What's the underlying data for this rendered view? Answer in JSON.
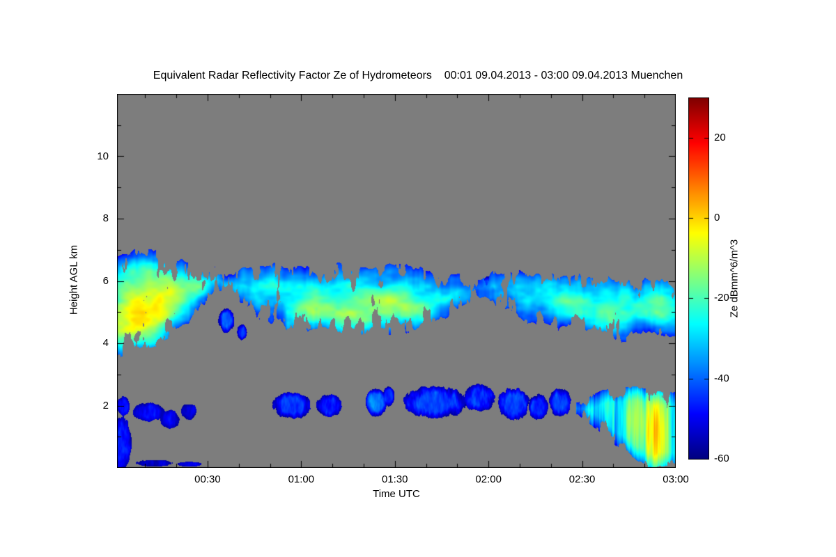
{
  "title": "Equivalent Radar Reflectivity Factor Ze of Hydrometeors    00:01 09.04.2013 - 03:00 09.04.2013 Muenchen",
  "site": "Muenchen",
  "time_start": "00:01 09.04.2013",
  "time_end": "03:00 09.04.2013",
  "plot": {
    "background_color": "#7d7d7d",
    "frame_color": "#000000"
  },
  "axes": {
    "x": {
      "label": "Time UTC",
      "start_minutes": 1,
      "end_minutes": 180,
      "minor_step_minutes": 10,
      "major_ticks": [
        {
          "minutes": 30,
          "label": "00:30"
        },
        {
          "minutes": 60,
          "label": "01:00"
        },
        {
          "minutes": 90,
          "label": "01:30"
        },
        {
          "minutes": 120,
          "label": "02:00"
        },
        {
          "minutes": 150,
          "label": "02:30"
        },
        {
          "minutes": 180,
          "label": "03:00"
        }
      ]
    },
    "y": {
      "label": "Height AGL km",
      "min_km": 0,
      "max_km": 12,
      "minor_step_km": 1,
      "major_ticks": [
        {
          "km": 2,
          "label": "2"
        },
        {
          "km": 4,
          "label": "4"
        },
        {
          "km": 6,
          "label": "6"
        },
        {
          "km": 8,
          "label": "8"
        },
        {
          "km": 10,
          "label": "10"
        }
      ]
    }
  },
  "colorbar": {
    "label": "Ze dBmm^6/m^3",
    "min": -60,
    "max": 30,
    "colormap": "jet",
    "ticks": [
      {
        "value": 20,
        "label": "20"
      },
      {
        "value": 0,
        "label": "0"
      },
      {
        "value": -20,
        "label": "-20"
      },
      {
        "value": -40,
        "label": "-40"
      },
      {
        "value": -60,
        "label": "-60"
      }
    ]
  },
  "chart_data": {
    "type": "heatmap",
    "title": "Equivalent Radar Reflectivity Factor Ze of Hydrometeors",
    "xlabel": "Time UTC",
    "ylabel": "Height AGL km",
    "zlabel": "Ze dBmm^6/m^3",
    "x_range_minutes": [
      1,
      180
    ],
    "y_range_km": [
      0,
      12
    ],
    "z_range_dbz": [
      -60,
      30
    ],
    "background": "no-signal gray",
    "colormap": "jet",
    "description": "Cloud radar time-height reflectivity: a mid-level cloud deck between ~3.6 and 7 km AGL across the full period (mostly -45 to -20 dB, embedded -15 to -5 dB yellow cores), patchy low clouds near 1.5-2.5 km (-55 to -42 dB), and precipitation reaching the ground after 02:30 with streaks up to ~-5 dB.",
    "layers": [
      {
        "kind": "band",
        "name": "upper-cloud-deck",
        "t_range": [
          1,
          180
        ],
        "top": [
          [
            1,
            6.85
          ],
          [
            8,
            7.0
          ],
          [
            14,
            6.9
          ],
          [
            20,
            6.75
          ],
          [
            26,
            6.65
          ],
          [
            32,
            6.35
          ],
          [
            36,
            6.2
          ],
          [
            42,
            6.45
          ],
          [
            50,
            6.5
          ],
          [
            58,
            6.4
          ],
          [
            66,
            6.45
          ],
          [
            74,
            6.5
          ],
          [
            82,
            6.4
          ],
          [
            90,
            6.5
          ],
          [
            98,
            6.35
          ],
          [
            104,
            6.15
          ],
          [
            110,
            6.3
          ],
          [
            116,
            6.1
          ],
          [
            122,
            6.2
          ],
          [
            128,
            6.3
          ],
          [
            134,
            6.15
          ],
          [
            140,
            6.25
          ],
          [
            146,
            6.1
          ],
          [
            152,
            6.2
          ],
          [
            158,
            6.05
          ],
          [
            164,
            6.15
          ],
          [
            170,
            6.05
          ],
          [
            175,
            6.1
          ],
          [
            180,
            6.0
          ]
        ],
        "base": [
          [
            1,
            3.6
          ],
          [
            6,
            3.75
          ],
          [
            12,
            3.95
          ],
          [
            18,
            4.25
          ],
          [
            24,
            4.7
          ],
          [
            30,
            5.35
          ],
          [
            34,
            5.7
          ],
          [
            38,
            5.4
          ],
          [
            44,
            5.0
          ],
          [
            50,
            4.7
          ],
          [
            56,
            4.5
          ],
          [
            62,
            4.35
          ],
          [
            68,
            4.45
          ],
          [
            74,
            4.15
          ],
          [
            80,
            4.3
          ],
          [
            86,
            4.2
          ],
          [
            92,
            4.35
          ],
          [
            98,
            4.5
          ],
          [
            104,
            4.7
          ],
          [
            110,
            5.0
          ],
          [
            116,
            5.5
          ],
          [
            120,
            5.6
          ],
          [
            124,
            5.2
          ],
          [
            128,
            4.9
          ],
          [
            134,
            4.7
          ],
          [
            140,
            4.6
          ],
          [
            146,
            4.5
          ],
          [
            152,
            4.4
          ],
          [
            158,
            4.3
          ],
          [
            164,
            4.1
          ],
          [
            170,
            4.4
          ],
          [
            175,
            4.2
          ],
          [
            180,
            4.25
          ]
        ],
        "edge_dbz": -46,
        "core_dbz": -28,
        "noise_amp": 9,
        "streak": [
          0.14,
          2.1
        ],
        "hole_scale": [
          0.45,
          1.3
        ],
        "hole_thresh": 0.24,
        "edge_jitter": 0.5,
        "edge_soft": 0.7,
        "cores": [
          {
            "t": 7,
            "h": 4.7,
            "st": 8,
            "sh": 1.2,
            "amp": 24
          },
          {
            "t": 17,
            "h": 5.5,
            "st": 7,
            "sh": 0.9,
            "amp": 18
          },
          {
            "t": 27,
            "h": 5.9,
            "st": 4,
            "sh": 0.5,
            "amp": 10
          },
          {
            "t": 62,
            "h": 5.0,
            "st": 7,
            "sh": 0.6,
            "amp": 13
          },
          {
            "t": 75,
            "h": 4.9,
            "st": 9,
            "sh": 0.6,
            "amp": 16
          },
          {
            "t": 88,
            "h": 5.3,
            "st": 7,
            "sh": 0.55,
            "amp": 14
          },
          {
            "t": 98,
            "h": 5.0,
            "st": 5,
            "sh": 0.5,
            "amp": 10
          },
          {
            "t": 146,
            "h": 5.2,
            "st": 5,
            "sh": 0.5,
            "amp": 11
          },
          {
            "t": 157,
            "h": 4.9,
            "st": 6,
            "sh": 0.6,
            "amp": 12
          },
          {
            "t": 174,
            "h": 5.3,
            "st": 4,
            "sh": 0.8,
            "amp": 8
          }
        ]
      },
      {
        "kind": "band",
        "name": "low-level-precipitation",
        "t_range": [
          148,
          180
        ],
        "top": [
          [
            148,
            2.15
          ],
          [
            152,
            2.3
          ],
          [
            156,
            2.45
          ],
          [
            160,
            2.55
          ],
          [
            164,
            2.6
          ],
          [
            168,
            2.55
          ],
          [
            172,
            2.5
          ],
          [
            176,
            2.45
          ],
          [
            180,
            2.4
          ]
        ],
        "base": [
          [
            148,
            1.7
          ],
          [
            152,
            1.45
          ],
          [
            156,
            1.15
          ],
          [
            160,
            0.8
          ],
          [
            164,
            0.45
          ],
          [
            168,
            0.2
          ],
          [
            171,
            0.05
          ],
          [
            180,
            0.0
          ]
        ],
        "edge_dbz": -48,
        "core_dbz": -32,
        "noise_amp": 13,
        "streak": [
          0.9,
          0.3
        ],
        "hole_scale": [
          0.5,
          1.0
        ],
        "hole_thresh": 0.2,
        "edge_jitter": 0.3,
        "edge_soft": 0.45,
        "cores": [
          {
            "t": 174,
            "h": 1.1,
            "st": 4.5,
            "sh": 1.8,
            "amp": 32
          },
          {
            "t": 167,
            "h": 1.6,
            "st": 4,
            "sh": 1.0,
            "amp": 14
          },
          {
            "t": 157,
            "h": 2.0,
            "st": 4,
            "sh": 0.5,
            "amp": 8
          }
        ]
      },
      {
        "kind": "blob",
        "t": 2.5,
        "h": 0.8,
        "rt": 3,
        "rh": 0.85,
        "core": -46
      },
      {
        "kind": "blob",
        "t": 3,
        "h": 2.0,
        "rt": 2,
        "rh": 0.3,
        "core": -50
      },
      {
        "kind": "blob",
        "t": 11,
        "h": 1.8,
        "rt": 5,
        "rh": 0.3,
        "core": -49
      },
      {
        "kind": "blob",
        "t": 18,
        "h": 1.55,
        "rt": 3,
        "rh": 0.3,
        "core": -50
      },
      {
        "kind": "blob",
        "t": 24,
        "h": 1.8,
        "rt": 2.5,
        "rh": 0.25,
        "core": -51
      },
      {
        "kind": "blob",
        "t": 57,
        "h": 2.0,
        "rt": 6,
        "rh": 0.42,
        "core": -44
      },
      {
        "kind": "blob",
        "t": 69,
        "h": 2.0,
        "rt": 4,
        "rh": 0.35,
        "core": -46
      },
      {
        "kind": "blob",
        "t": 84,
        "h": 2.1,
        "rt": 3.5,
        "rh": 0.45,
        "core": -38
      },
      {
        "kind": "blob",
        "t": 88,
        "h": 2.3,
        "rt": 2,
        "rh": 0.3,
        "core": -44
      },
      {
        "kind": "blob",
        "t": 103,
        "h": 2.1,
        "rt": 10,
        "rh": 0.5,
        "core": -43
      },
      {
        "kind": "blob",
        "t": 117,
        "h": 2.25,
        "rt": 5,
        "rh": 0.45,
        "core": -45
      },
      {
        "kind": "blob",
        "t": 128,
        "h": 2.05,
        "rt": 5,
        "rh": 0.5,
        "core": -43
      },
      {
        "kind": "blob",
        "t": 136,
        "h": 1.95,
        "rt": 3,
        "rh": 0.4,
        "core": -45
      },
      {
        "kind": "blob",
        "t": 143,
        "h": 2.1,
        "rt": 3.5,
        "rh": 0.45,
        "core": -44
      },
      {
        "kind": "blob",
        "t": 2,
        "h": 0.2,
        "rt": 2,
        "rh": 0.25,
        "core": -50
      },
      {
        "kind": "blob",
        "t": 13,
        "h": 0.15,
        "rt": 6,
        "rh": 0.1,
        "core": -52
      },
      {
        "kind": "blob",
        "t": 24,
        "h": 0.12,
        "rt": 4,
        "rh": 0.08,
        "core": -52
      },
      {
        "kind": "blob",
        "t": 36,
        "h": 4.75,
        "rt": 2.5,
        "rh": 0.4,
        "core": -40
      },
      {
        "kind": "blob",
        "t": 41,
        "h": 4.35,
        "rt": 1.5,
        "rh": 0.25,
        "core": -45
      },
      {
        "kind": "blob",
        "t": 120,
        "h": 5.9,
        "rt": 2,
        "rh": 0.25,
        "core": -42
      }
    ]
  }
}
